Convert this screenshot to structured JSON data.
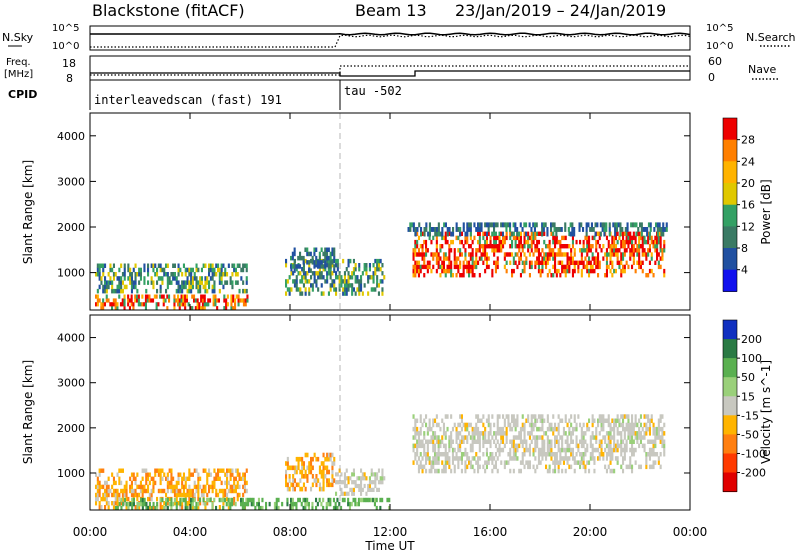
{
  "header": {
    "title": "Blackstone (fitACF)",
    "beam": "Beam 13",
    "dates": "23/Jan/2019 – 24/Jan/2019"
  },
  "sky_panel": {
    "left_label": "N.Sky",
    "left_ticks": [
      "10^5",
      "10^0"
    ],
    "right_ticks": [
      "10^5",
      "10^0"
    ],
    "right_label": "N.Search"
  },
  "freq_panel": {
    "left_label_1": "Freq.",
    "left_label_2": "[MHz]",
    "left_ticks": [
      "18",
      "8"
    ],
    "right_ticks": [
      "60",
      "0"
    ],
    "right_label": "Nave"
  },
  "cpid_panel": {
    "label": "CPID",
    "segments": [
      "interleavedscan (fast) 191",
      "tau -502"
    ]
  },
  "chart_data": [
    {
      "type": "heatmap",
      "name": "power",
      "ylabel": "Slant Range [km]",
      "xlabel": "",
      "x_ticks": [
        "00:00",
        "04:00",
        "08:00",
        "12:00",
        "16:00",
        "20:00",
        "00:00"
      ],
      "xlim_hours": [
        0,
        24
      ],
      "ylim_km": [
        180,
        4500
      ],
      "y_ticks": [
        1000,
        2000,
        3000,
        4000
      ],
      "colorbar": {
        "label": "Power [dB]",
        "ticks": [
          "28",
          "24",
          "20",
          "16",
          "12",
          "8",
          "4"
        ],
        "colors": [
          "#ee0000",
          "#ff7f00",
          "#ffb300",
          "#e0c800",
          "#33a064",
          "#3a7a64",
          "#2050a0",
          "#1010ee"
        ]
      },
      "regions": [
        {
          "t0": 0.2,
          "t1": 6.4,
          "r0": 180,
          "r1": 520,
          "level": "high"
        },
        {
          "t0": 0.2,
          "t1": 6.3,
          "r0": 550,
          "r1": 1200,
          "level": "medium"
        },
        {
          "t0": 7.8,
          "t1": 11.8,
          "r0": 500,
          "r1": 1300,
          "level": "medium"
        },
        {
          "t0": 8.0,
          "t1": 9.8,
          "r0": 1000,
          "r1": 1550,
          "level": "low"
        },
        {
          "t0": 12.9,
          "t1": 23.0,
          "r0": 900,
          "r1": 1900,
          "level": "high"
        },
        {
          "t0": 12.7,
          "t1": 23.1,
          "r0": 1800,
          "r1": 2100,
          "level": "low"
        }
      ]
    },
    {
      "type": "heatmap",
      "name": "velocity",
      "ylabel": "Slant Range [km]",
      "xlabel": "Time UT",
      "x_ticks": [
        "00:00",
        "04:00",
        "08:00",
        "12:00",
        "16:00",
        "20:00",
        "00:00"
      ],
      "xlim_hours": [
        0,
        24
      ],
      "ylim_km": [
        180,
        4500
      ],
      "y_ticks": [
        1000,
        2000,
        3000,
        4000
      ],
      "colorbar": {
        "label": "Velocity [m s^-1]",
        "ticks": [
          "200",
          "100",
          "50",
          "15",
          "-15",
          "-50",
          "-100",
          "-200"
        ],
        "colors": [
          "#1030c0",
          "#2a7a44",
          "#5ab050",
          "#9ad07a",
          "#c8c8c0",
          "#ffb400",
          "#ff7f10",
          "#ff3a00",
          "#e00000"
        ]
      },
      "regions": [
        {
          "t0": 0.2,
          "t1": 6.3,
          "r0": 200,
          "r1": 1100,
          "level": "negative"
        },
        {
          "t0": 7.8,
          "t1": 9.8,
          "r0": 600,
          "r1": 1450,
          "level": "negative"
        },
        {
          "t0": 9.8,
          "t1": 11.8,
          "r0": 500,
          "r1": 1100,
          "level": "near-zero"
        },
        {
          "t0": 12.9,
          "t1": 23.0,
          "r0": 1000,
          "r1": 2300,
          "level": "near-zero"
        },
        {
          "t0": 1.0,
          "t1": 12.0,
          "r0": 180,
          "r1": 450,
          "level": "positive"
        }
      ]
    }
  ]
}
